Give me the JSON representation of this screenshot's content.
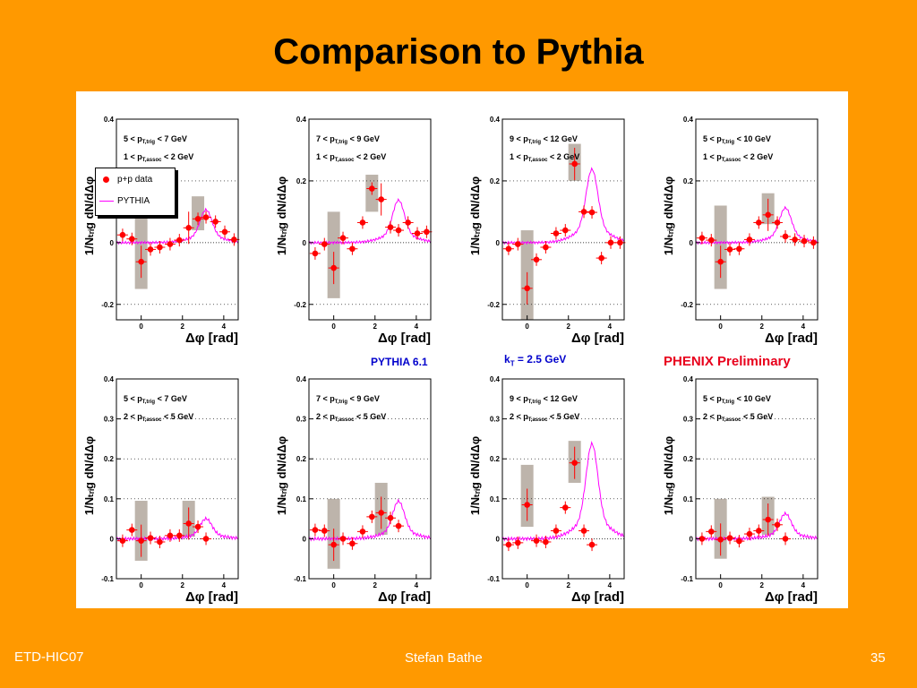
{
  "slide": {
    "title": "Comparison to Pythia",
    "footer_left": "ETD-HIC07",
    "footer_center": "Stefan Bathe",
    "footer_right": "35"
  },
  "annotations": {
    "pythia_version": "PYTHIA 6.1",
    "kt": "= 2.5 GeV",
    "phenix": "PHENIX Preliminary"
  },
  "legend": {
    "data_label": "p+p data",
    "model_label": "PYTHIA"
  },
  "colors": {
    "background": "#FF9900",
    "data": "#FF0000",
    "model": "#FF00FF",
    "sys_box": "#BDB4AB",
    "blue_text": "#0000CC",
    "red_text": "#E8001C"
  },
  "chart_data": [
    {
      "type": "scatter",
      "row": 0,
      "col": 0,
      "trig": "5 < p",
      "trig_range": "< 7 GeV",
      "assoc_range": "1 < p",
      "assoc_tail": "< 2 GeV",
      "ylim": [
        -0.25,
        0.4
      ],
      "yticks": [
        "0.4",
        "0.2",
        "0",
        "-0.2"
      ],
      "xticks": [
        "0",
        "2",
        "4"
      ],
      "xlabel": "[rad]",
      "points": [
        [
          -0.9,
          0.025
        ],
        [
          -0.45,
          0.012
        ],
        [
          0,
          -0.062
        ],
        [
          0.45,
          -0.022
        ],
        [
          0.9,
          -0.015
        ],
        [
          1.4,
          -0.005
        ],
        [
          1.85,
          0.008
        ],
        [
          2.3,
          0.048
        ],
        [
          2.75,
          0.077
        ],
        [
          3.14,
          0.082
        ],
        [
          3.6,
          0.068
        ],
        [
          4.05,
          0.035
        ],
        [
          4.5,
          0.01
        ]
      ],
      "sys": [
        [
          0,
          -0.15,
          0.11
        ],
        [
          2.75,
          0.04,
          0.15
        ]
      ],
      "peak": 0.085
    },
    {
      "type": "scatter",
      "row": 0,
      "col": 1,
      "trig": "7 < p",
      "trig_range": "< 9 GeV",
      "assoc_range": "1 < p",
      "assoc_tail": "< 2 GeV",
      "ylim": [
        -0.25,
        0.4
      ],
      "yticks": [
        "0.4",
        "0.2",
        "0",
        "-0.2"
      ],
      "xticks": [
        "0",
        "2",
        "4"
      ],
      "xlabel": "[rad]",
      "points": [
        [
          -0.9,
          -0.035
        ],
        [
          -0.45,
          -0.005
        ],
        [
          0,
          -0.082
        ],
        [
          0.45,
          0.015
        ],
        [
          0.9,
          -0.02
        ],
        [
          1.4,
          0.065
        ],
        [
          1.85,
          0.175
        ],
        [
          2.3,
          0.14
        ],
        [
          2.75,
          0.05
        ],
        [
          3.14,
          0.04
        ],
        [
          3.6,
          0.065
        ],
        [
          4.05,
          0.03
        ],
        [
          4.5,
          0.035
        ]
      ],
      "sys": [
        [
          0,
          -0.18,
          0.1
        ],
        [
          1.85,
          0.1,
          0.22
        ]
      ],
      "peak": 0.11
    },
    {
      "type": "scatter",
      "row": 0,
      "col": 2,
      "trig": "9 < p",
      "trig_range": "< 12 GeV",
      "assoc_range": "1 < p",
      "assoc_tail": "< 2 GeV",
      "ylim": [
        -0.25,
        0.4
      ],
      "yticks": [
        "0.4",
        "0.2",
        "0",
        "-0.2"
      ],
      "xticks": [
        "0",
        "2",
        "4"
      ],
      "xlabel": "[rad]",
      "points": [
        [
          -0.9,
          -0.02
        ],
        [
          -0.45,
          -0.005
        ],
        [
          0,
          -0.148
        ],
        [
          0.45,
          -0.055
        ],
        [
          0.9,
          -0.015
        ],
        [
          1.4,
          0.03
        ],
        [
          1.85,
          0.04
        ],
        [
          2.3,
          0.255
        ],
        [
          2.75,
          0.1
        ],
        [
          3.14,
          0.098
        ],
        [
          3.6,
          -0.05
        ],
        [
          4.05,
          0.0
        ],
        [
          4.5,
          0.0
        ]
      ],
      "sys": [
        [
          0,
          -0.25,
          0.04
        ],
        [
          2.3,
          0.2,
          0.32
        ]
      ],
      "peak": 0.19
    },
    {
      "type": "scatter",
      "row": 0,
      "col": 3,
      "trig": "5 < p",
      "trig_range": "< 10 GeV",
      "assoc_range": "1 < p",
      "assoc_tail": "< 2 GeV",
      "ylim": [
        -0.25,
        0.4
      ],
      "yticks": [
        "0.4",
        "0.2",
        "0",
        "-0.2"
      ],
      "xticks": [
        "0",
        "2",
        "4"
      ],
      "xlabel": "[rad]",
      "points": [
        [
          -0.9,
          0.015
        ],
        [
          -0.45,
          0.008
        ],
        [
          0,
          -0.062
        ],
        [
          0.45,
          -0.022
        ],
        [
          0.9,
          -0.02
        ],
        [
          1.4,
          0.01
        ],
        [
          1.85,
          0.065
        ],
        [
          2.3,
          0.09
        ],
        [
          2.75,
          0.065
        ],
        [
          3.14,
          0.02
        ],
        [
          3.6,
          0.01
        ],
        [
          4.05,
          0.005
        ],
        [
          4.5,
          0.0
        ]
      ],
      "sys": [
        [
          0,
          -0.15,
          0.12
        ],
        [
          2.3,
          0.06,
          0.16
        ]
      ],
      "peak": 0.09
    },
    {
      "type": "scatter",
      "row": 1,
      "col": 0,
      "trig": "5 < p",
      "trig_range": "< 7 GeV",
      "assoc_range": "2 < p",
      "assoc_tail": "< 5 GeV",
      "ylim": [
        -0.1,
        0.4
      ],
      "yticks": [
        "0.4",
        "0.3",
        "0.2",
        "0.1",
        "0",
        "-0.1"
      ],
      "xticks": [
        "0",
        "2",
        "4"
      ],
      "xlabel": "[rad]",
      "points": [
        [
          -0.9,
          -0.005
        ],
        [
          -0.45,
          0.022
        ],
        [
          0,
          -0.005
        ],
        [
          0.45,
          0.002
        ],
        [
          0.9,
          -0.008
        ],
        [
          1.4,
          0.008
        ],
        [
          1.85,
          0.008
        ],
        [
          2.3,
          0.038
        ],
        [
          2.75,
          0.03
        ],
        [
          3.14,
          0.0
        ]
      ],
      "sys": [
        [
          0,
          -0.055,
          0.095
        ],
        [
          2.3,
          0.005,
          0.095
        ]
      ],
      "peak": 0.04
    },
    {
      "type": "scatter",
      "row": 1,
      "col": 1,
      "trig": "7 < p",
      "trig_range": "< 9 GeV",
      "assoc_range": "2 < p",
      "assoc_tail": "< 5 GeV",
      "ylim": [
        -0.1,
        0.4
      ],
      "yticks": [
        "0.4",
        "0.3",
        "0.2",
        "0.1",
        "0",
        "-0.1"
      ],
      "xticks": [
        "0",
        "2",
        "4"
      ],
      "xlabel": "[rad]",
      "points": [
        [
          -0.9,
          0.022
        ],
        [
          -0.45,
          0.02
        ],
        [
          0,
          -0.015
        ],
        [
          0.45,
          0.0
        ],
        [
          0.9,
          -0.012
        ],
        [
          1.4,
          0.018
        ],
        [
          1.85,
          0.055
        ],
        [
          2.3,
          0.065
        ],
        [
          2.75,
          0.052
        ],
        [
          3.14,
          0.032
        ]
      ],
      "sys": [
        [
          0,
          -0.075,
          0.1
        ],
        [
          2.3,
          0.01,
          0.14
        ]
      ],
      "peak": 0.075
    },
    {
      "type": "scatter",
      "row": 1,
      "col": 2,
      "trig": "9 < p",
      "trig_range": "< 12 GeV",
      "assoc_range": "2 < p",
      "assoc_tail": "< 5 GeV",
      "ylim": [
        -0.1,
        0.4
      ],
      "yticks": [
        "0.4",
        "0.3",
        "0.2",
        "0.1",
        "0",
        "-0.1"
      ],
      "xticks": [
        "0",
        "2",
        "4"
      ],
      "xlabel": "[rad]",
      "points": [
        [
          -0.9,
          -0.015
        ],
        [
          -0.45,
          -0.01
        ],
        [
          0,
          0.085
        ],
        [
          0.45,
          -0.005
        ],
        [
          0.9,
          -0.008
        ],
        [
          1.4,
          0.02
        ],
        [
          1.85,
          0.078
        ],
        [
          2.3,
          0.19
        ],
        [
          2.75,
          0.02
        ],
        [
          3.14,
          -0.015
        ]
      ],
      "sys": [
        [
          0,
          0.03,
          0.185
        ],
        [
          2.3,
          0.14,
          0.245
        ]
      ],
      "peak": 0.19
    },
    {
      "type": "scatter",
      "row": 1,
      "col": 3,
      "trig": "5 < p",
      "trig_range": "< 10 GeV",
      "assoc_range": "2 < p",
      "assoc_tail": "< 5 GeV",
      "ylim": [
        -0.1,
        0.4
      ],
      "yticks": [
        "0.4",
        "0.3",
        "0.2",
        "0.1",
        "0",
        "-0.1"
      ],
      "xticks": [
        "0",
        "2",
        "4"
      ],
      "xlabel": "[rad]",
      "points": [
        [
          -0.9,
          0.0
        ],
        [
          -0.45,
          0.018
        ],
        [
          0,
          -0.002
        ],
        [
          0.45,
          0.002
        ],
        [
          0.9,
          -0.006
        ],
        [
          1.4,
          0.012
        ],
        [
          1.85,
          0.02
        ],
        [
          2.3,
          0.048
        ],
        [
          2.75,
          0.035
        ],
        [
          3.14,
          0.0
        ]
      ],
      "sys": [
        [
          0,
          -0.05,
          0.1
        ],
        [
          2.3,
          0.01,
          0.105
        ]
      ],
      "peak": 0.05
    }
  ]
}
